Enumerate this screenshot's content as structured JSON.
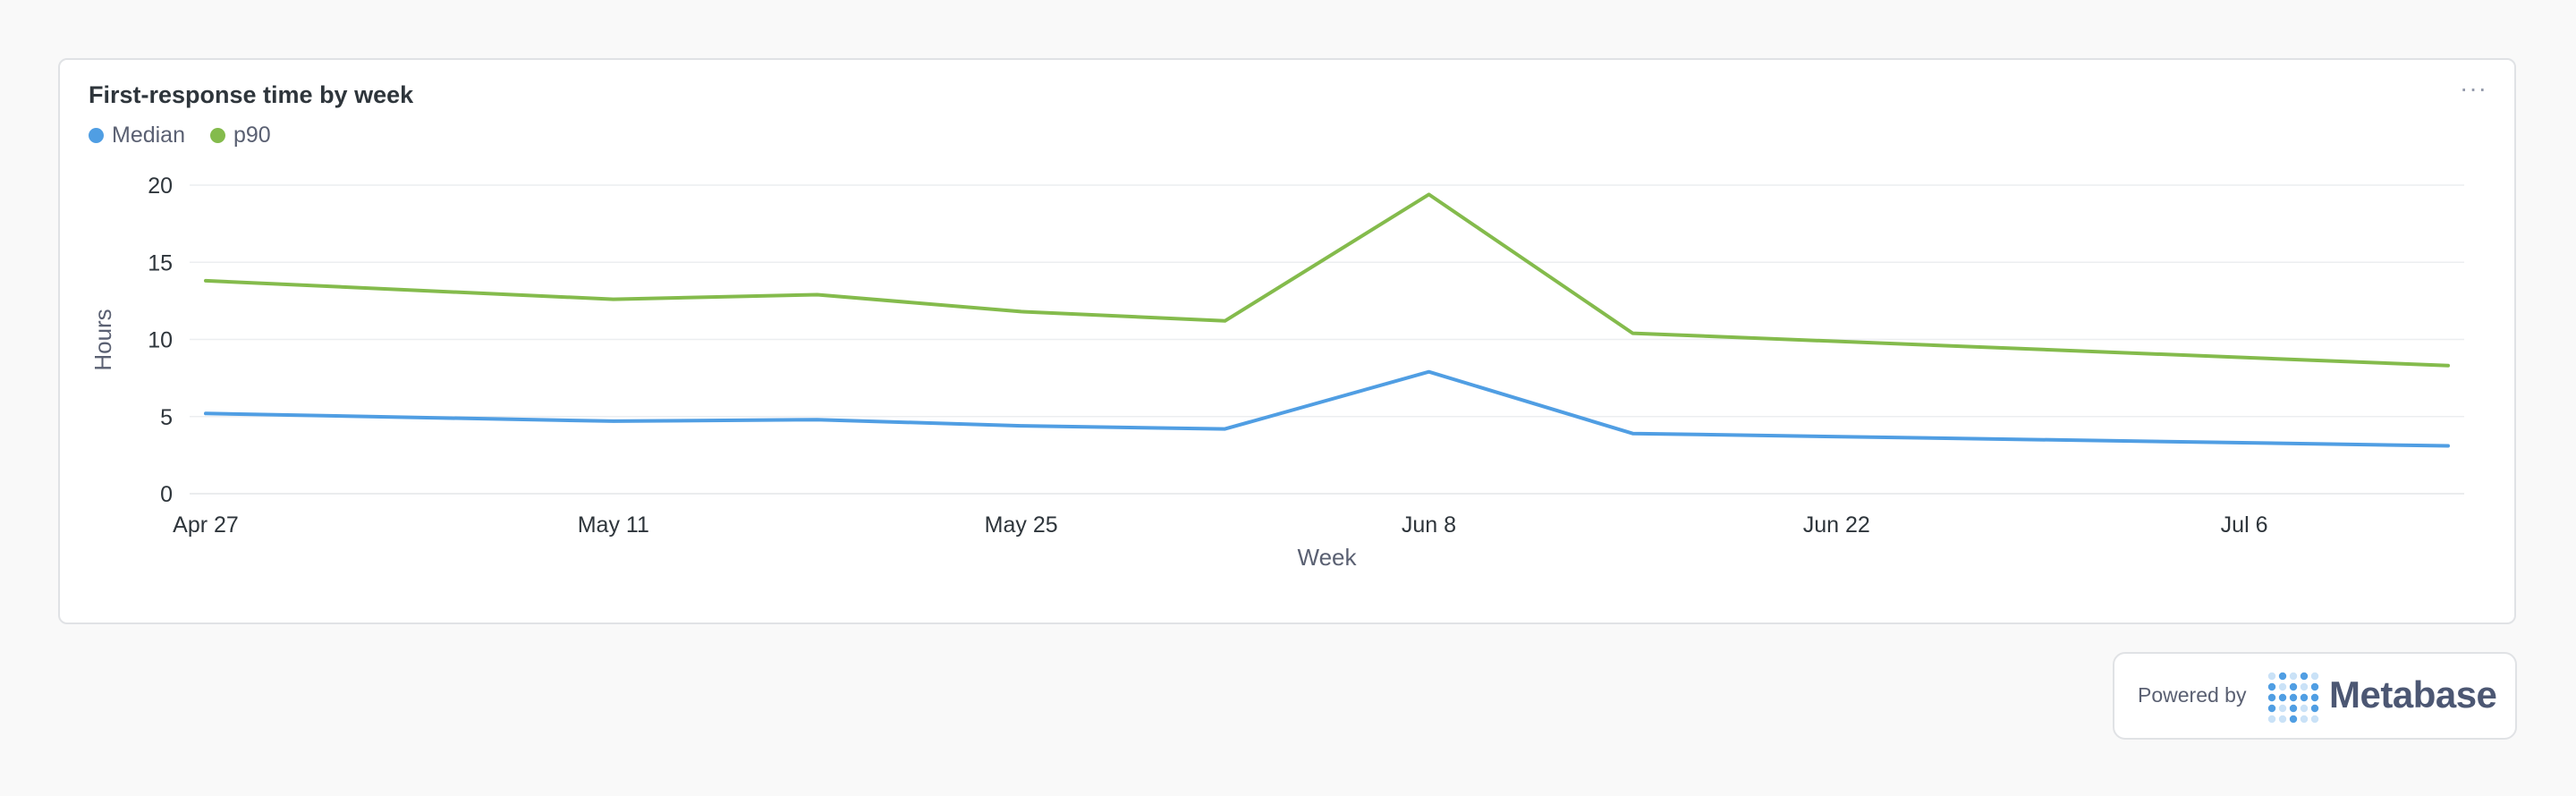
{
  "card": {
    "title": "First-response time by week",
    "more_label": "···"
  },
  "colors": {
    "median": "#509ee3",
    "p90": "#84bb4c",
    "grid": "#eceef0",
    "logo": "#509ee3"
  },
  "chart_data": {
    "type": "line",
    "xlabel": "Week",
    "ylabel": "Hours",
    "ylim": [
      0,
      20
    ],
    "yticks": [
      0,
      5,
      10,
      15,
      20
    ],
    "x": [
      "2025-04-27",
      "2025-05-04",
      "2025-05-11",
      "2025-05-18",
      "2025-05-25",
      "2025-06-01",
      "2025-06-08",
      "2025-06-15",
      "2025-06-22",
      "2025-06-29",
      "2025-07-06",
      "2025-07-13"
    ],
    "xtick_labels": [
      {
        "x": "2025-04-27",
        "label": "Apr 27"
      },
      {
        "x": "2025-05-11",
        "label": "May 11"
      },
      {
        "x": "2025-05-25",
        "label": "May 25"
      },
      {
        "x": "2025-06-08",
        "label": "Jun 8"
      },
      {
        "x": "2025-06-22",
        "label": "Jun 22"
      },
      {
        "x": "2025-07-06",
        "label": "Jul 6"
      }
    ],
    "series": [
      {
        "name": "Median",
        "color": "#509ee3",
        "values": [
          5.2,
          null,
          4.7,
          4.8,
          4.4,
          4.2,
          7.9,
          3.9,
          null,
          null,
          null,
          3.1
        ]
      },
      {
        "name": "p90",
        "color": "#84bb4c",
        "values": [
          13.8,
          null,
          12.6,
          12.9,
          11.8,
          11.2,
          19.4,
          10.4,
          null,
          null,
          null,
          8.3
        ]
      }
    ],
    "grid": true,
    "legend": "top-left"
  },
  "footer": {
    "powered_by": "Powered by",
    "brand": "Metabase"
  }
}
